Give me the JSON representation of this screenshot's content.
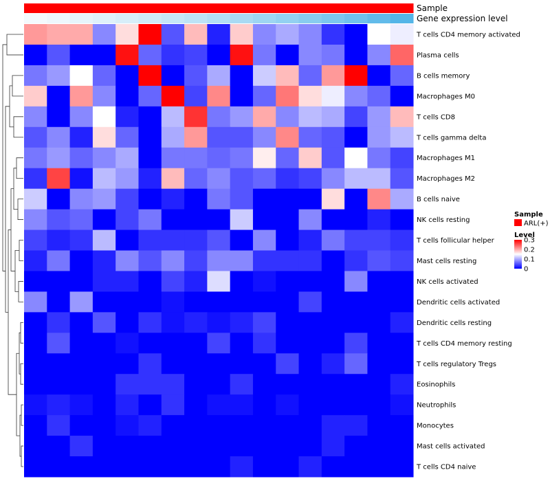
{
  "chart_data": {
    "type": "heatmap",
    "title": "",
    "annotation_tracks": [
      {
        "name": "Sample",
        "colors": [
          "#ff0000",
          "#ff0000",
          "#ff0000",
          "#ff0000",
          "#ff0000",
          "#ff0000",
          "#ff0000",
          "#ff0000",
          "#ff0000",
          "#ff0000",
          "#ff0000",
          "#ff0000",
          "#ff0000",
          "#ff0000",
          "#ff0000",
          "#ff0000",
          "#ff0000"
        ]
      },
      {
        "name": "Gene expression level",
        "colors": [
          "#f4fafd",
          "#eef7fc",
          "#e6f4fb",
          "#dff1fa",
          "#d7eef9",
          "#cfebf8",
          "#c6e7f7",
          "#bde3f6",
          "#b3dff5",
          "#a9daf3",
          "#9ed6f2",
          "#93d1f1",
          "#88ccef",
          "#7cc7ee",
          "#70c1ec",
          "#62bbea",
          "#54b5e8"
        ]
      }
    ],
    "rows": [
      "T cells CD4 memory activated",
      "Plasma cells",
      "B cells memory",
      "Macrophages M0",
      "T cells CD8",
      "T cells gamma delta",
      "Macrophages M1",
      "Macrophages M2",
      "B cells naive",
      "NK cells resting",
      "T cells follicular helper",
      "Mast cells resting",
      "NK cells activated",
      "Dendritic cells activated",
      "Dendritic cells resting",
      "T cells CD4 memory resting",
      "T cells regulatory  Tregs",
      "Eosinophils",
      "Neutrophils",
      "Monocytes",
      "Mast cells activated",
      "T cells CD4 naive"
    ],
    "n_columns": 17,
    "values": [
      [
        0.21,
        0.2,
        0.2,
        0.08,
        0.17,
        0.3,
        0.05,
        0.19,
        0.02,
        0.18,
        0.08,
        0.1,
        0.08,
        0.03,
        0.0,
        0.15,
        0.14
      ],
      [
        0.0,
        0.05,
        0.0,
        0.0,
        0.29,
        0.06,
        0.03,
        0.04,
        0.0,
        0.29,
        0.07,
        0.0,
        0.08,
        0.07,
        0.0,
        0.08,
        0.24
      ],
      [
        0.07,
        0.09,
        0.15,
        0.06,
        0.0,
        0.3,
        0.0,
        0.05,
        0.1,
        0.0,
        0.12,
        0.19,
        0.06,
        0.21,
        0.3,
        0.0,
        0.06
      ],
      [
        0.18,
        0.0,
        0.21,
        0.08,
        0.0,
        0.06,
        0.3,
        0.04,
        0.22,
        0.0,
        0.06,
        0.23,
        0.17,
        0.14,
        0.08,
        0.06,
        0.0
      ],
      [
        0.08,
        0.0,
        0.08,
        0.15,
        0.02,
        0.0,
        0.11,
        0.27,
        0.07,
        0.09,
        0.2,
        0.08,
        0.11,
        0.1,
        0.04,
        0.09,
        0.19
      ],
      [
        0.05,
        0.08,
        0.02,
        0.17,
        0.06,
        0.0,
        0.1,
        0.21,
        0.05,
        0.05,
        0.08,
        0.22,
        0.06,
        0.05,
        0.0,
        0.09,
        0.11
      ],
      [
        0.07,
        0.09,
        0.06,
        0.08,
        0.1,
        0.0,
        0.07,
        0.07,
        0.06,
        0.07,
        0.16,
        0.06,
        0.18,
        0.05,
        0.15,
        0.07,
        0.04
      ],
      [
        0.03,
        0.26,
        0.01,
        0.11,
        0.09,
        0.02,
        0.19,
        0.06,
        0.08,
        0.05,
        0.06,
        0.03,
        0.04,
        0.08,
        0.11,
        0.11,
        0.05
      ],
      [
        0.12,
        0.0,
        0.08,
        0.09,
        0.04,
        0.0,
        0.02,
        0.0,
        0.07,
        0.05,
        0.0,
        0.0,
        0.0,
        0.17,
        0.0,
        0.22,
        0.1
      ],
      [
        0.08,
        0.05,
        0.06,
        0.0,
        0.04,
        0.07,
        0.0,
        0.0,
        0.0,
        0.12,
        0.0,
        0.0,
        0.08,
        0.0,
        0.0,
        0.02,
        0.0
      ],
      [
        0.04,
        0.02,
        0.03,
        0.11,
        0.0,
        0.03,
        0.03,
        0.03,
        0.05,
        0.0,
        0.08,
        0.0,
        0.02,
        0.07,
        0.04,
        0.04,
        0.03
      ],
      [
        0.02,
        0.07,
        0.0,
        0.02,
        0.08,
        0.05,
        0.08,
        0.04,
        0.08,
        0.08,
        0.03,
        0.03,
        0.03,
        0.0,
        0.03,
        0.05,
        0.04
      ],
      [
        0.0,
        0.0,
        0.0,
        0.02,
        0.02,
        0.0,
        0.04,
        0.02,
        0.13,
        0.0,
        0.01,
        0.0,
        0.0,
        0.0,
        0.08,
        0.0,
        0.0
      ],
      [
        0.08,
        0.0,
        0.09,
        0.0,
        0.0,
        0.0,
        0.01,
        0.0,
        0.0,
        0.0,
        0.0,
        0.0,
        0.04,
        0.0,
        0.0,
        0.0,
        0.0
      ],
      [
        0.0,
        0.03,
        0.0,
        0.05,
        0.0,
        0.03,
        0.01,
        0.02,
        0.01,
        0.02,
        0.04,
        0.0,
        0.0,
        0.0,
        0.0,
        0.0,
        0.02
      ],
      [
        0.0,
        0.05,
        0.0,
        0.0,
        0.01,
        0.0,
        0.0,
        0.0,
        0.04,
        0.0,
        0.03,
        0.0,
        0.0,
        0.0,
        0.04,
        0.0,
        0.0
      ],
      [
        0.0,
        0.0,
        0.0,
        0.0,
        0.0,
        0.03,
        0.0,
        0.0,
        0.0,
        0.0,
        0.0,
        0.04,
        0.0,
        0.02,
        0.06,
        0.0,
        0.0
      ],
      [
        0.0,
        0.0,
        0.0,
        0.0,
        0.03,
        0.03,
        0.03,
        0.0,
        0.0,
        0.03,
        0.0,
        0.0,
        0.0,
        0.0,
        0.0,
        0.0,
        0.02
      ],
      [
        0.01,
        0.02,
        0.01,
        0.0,
        0.02,
        0.0,
        0.03,
        0.0,
        0.01,
        0.01,
        0.0,
        0.01,
        0.0,
        0.0,
        0.0,
        0.0,
        0.01
      ],
      [
        0.0,
        0.03,
        0.0,
        0.0,
        0.01,
        0.02,
        0.0,
        0.0,
        0.0,
        0.0,
        0.0,
        0.0,
        0.0,
        0.02,
        0.02,
        0.0,
        0.0
      ],
      [
        0.0,
        0.0,
        0.03,
        0.0,
        0.0,
        0.0,
        0.0,
        0.0,
        0.0,
        0.0,
        0.0,
        0.0,
        0.0,
        0.02,
        0.0,
        0.0,
        0.0
      ],
      [
        0.0,
        0.0,
        0.0,
        0.0,
        0.0,
        0.0,
        0.0,
        0.0,
        0.0,
        0.02,
        0.0,
        0.0,
        0.02,
        0.0,
        0.0,
        0.0,
        0.0
      ]
    ],
    "color_scale": {
      "low": "#0000ff",
      "mid": "#ffffff",
      "high": "#ff0000",
      "min": 0,
      "mid_value": 0.15,
      "max": 0.3
    },
    "legend": {
      "sample": {
        "title": "Sample",
        "entries": [
          {
            "label": "ARL(+)",
            "color": "#ff0000"
          }
        ]
      },
      "level": {
        "title": "Level",
        "ticks": [
          0.3,
          0.2,
          0.1,
          0
        ],
        "tick_labels": [
          "0.3",
          "0.2",
          "0.1",
          "0"
        ]
      }
    },
    "dendrogram": "rows clustered (left side)"
  }
}
